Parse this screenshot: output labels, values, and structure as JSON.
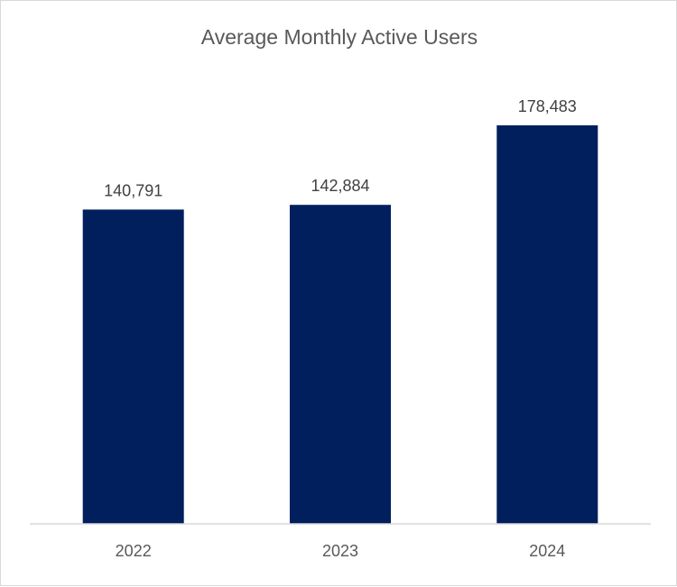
{
  "chart_data": {
    "type": "bar",
    "title": "Average Monthly Active Users",
    "categories": [
      "2022",
      "2023",
      "2024"
    ],
    "values": [
      140791,
      142884,
      178483
    ],
    "data_labels": [
      "140,791",
      "142,884",
      "178,483"
    ],
    "xlabel": "",
    "ylabel": "",
    "ylim": [
      0,
      210000
    ],
    "grid": false,
    "legend": "none",
    "bar_color": "#001f5c",
    "axis_color": "#d9d9d9"
  }
}
